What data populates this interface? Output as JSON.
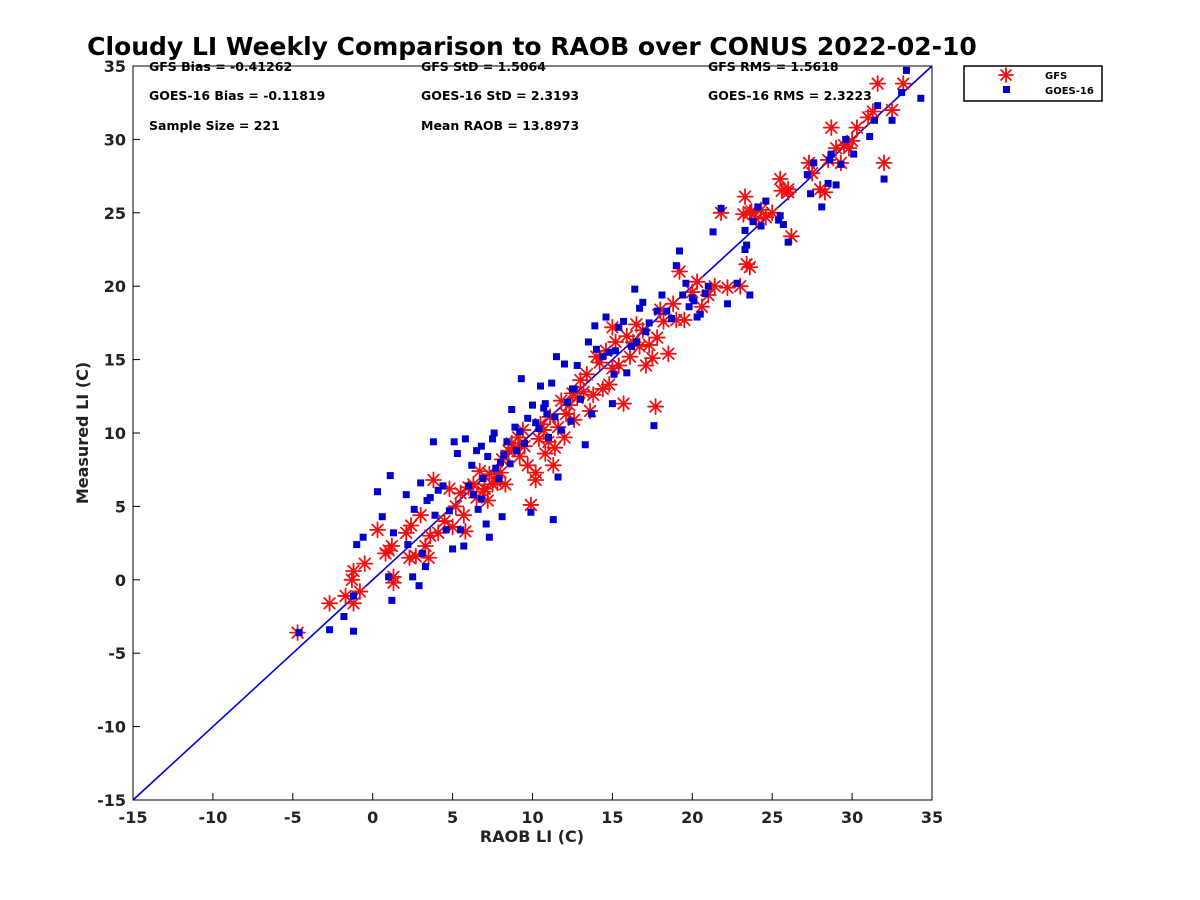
{
  "chart_data": {
    "type": "scatter",
    "title": "Cloudy LI Weekly Comparison to RAOB over CONUS 2022-02-10",
    "xlabel": "RAOB LI (C)",
    "ylabel": "Measured LI (C)",
    "xlim": [
      -15,
      35
    ],
    "ylim": [
      -15,
      35
    ],
    "xticks": [
      -15,
      -10,
      -5,
      0,
      5,
      10,
      15,
      20,
      25,
      30,
      35
    ],
    "yticks": [
      -15,
      -10,
      -5,
      0,
      5,
      10,
      15,
      20,
      25,
      30,
      35
    ],
    "grid": false,
    "legend_position": "top-right outside",
    "reference_line": {
      "x": [
        -15,
        35
      ],
      "y": [
        -15,
        35
      ],
      "color": "#0000dd"
    },
    "stats": [
      [
        "GFS Bias = -0.41262",
        "GFS StD = 1.5064",
        "GFS RMS = 1.5618"
      ],
      [
        "GOES-16 Bias = -0.11819",
        "GOES-16 StD = 2.3193",
        "GOES-16 RMS = 2.3223"
      ],
      [
        "Sample Size = 221",
        "Mean RAOB = 13.8973"
      ]
    ],
    "series": [
      {
        "name": "GFS",
        "marker": "asterisk",
        "color": "#ee1111",
        "points": [
          [
            -4.7,
            -3.6
          ],
          [
            -2.7,
            -1.6
          ],
          [
            -1.7,
            -1.1
          ],
          [
            -1.2,
            -1.6
          ],
          [
            -1.3,
            0
          ],
          [
            -1.2,
            0.6
          ],
          [
            -0.8,
            -0.8
          ],
          [
            -0.5,
            1.1
          ],
          [
            0.3,
            3.4
          ],
          [
            0.8,
            1.8
          ],
          [
            1.2,
            2.3
          ],
          [
            1.3,
            0.2
          ],
          [
            1.0,
            2.0
          ],
          [
            1.3,
            -0.2
          ],
          [
            2.1,
            3.2
          ],
          [
            2.3,
            1.5
          ],
          [
            2.4,
            3.7
          ],
          [
            2.7,
            1.6
          ],
          [
            3.0,
            4.4
          ],
          [
            3.3,
            2.3
          ],
          [
            3.5,
            1.5
          ],
          [
            3.6,
            3.0
          ],
          [
            3.8,
            6.8
          ],
          [
            4.1,
            3.2
          ],
          [
            4.5,
            4.0
          ],
          [
            4.8,
            6.2
          ],
          [
            5.0,
            3.6
          ],
          [
            5.2,
            5.0
          ],
          [
            5.5,
            5.9
          ],
          [
            5.7,
            4.4
          ],
          [
            5.8,
            3.3
          ],
          [
            6.0,
            6.3
          ],
          [
            6.3,
            6.5
          ],
          [
            6.5,
            5.6
          ],
          [
            6.7,
            7.4
          ],
          [
            6.9,
            6.0
          ],
          [
            7.0,
            6.2
          ],
          [
            7.2,
            5.4
          ],
          [
            7.3,
            7.2
          ],
          [
            7.5,
            6.5
          ],
          [
            7.6,
            6.9
          ],
          [
            7.8,
            6.6
          ],
          [
            8.0,
            7.3
          ],
          [
            8.1,
            8.2
          ],
          [
            8.3,
            6.5
          ],
          [
            8.5,
            8.8
          ],
          [
            8.7,
            9.3
          ],
          [
            8.9,
            9.0
          ],
          [
            9.1,
            9.7
          ],
          [
            9.2,
            8.4
          ],
          [
            9.4,
            10.2
          ],
          [
            9.5,
            9.1
          ],
          [
            9.7,
            7.8
          ],
          [
            9.9,
            5.1
          ],
          [
            10.2,
            7.3
          ],
          [
            10.2,
            6.8
          ],
          [
            10.4,
            9.6
          ],
          [
            10.5,
            10.6
          ],
          [
            10.7,
            10.2
          ],
          [
            10.8,
            8.6
          ],
          [
            11.0,
            9.4
          ],
          [
            11.1,
            11.1
          ],
          [
            11.3,
            7.8
          ],
          [
            11.4,
            9.0
          ],
          [
            11.6,
            10.4
          ],
          [
            11.8,
            12.2
          ],
          [
            12.0,
            9.7
          ],
          [
            12.1,
            11.3
          ],
          [
            12.3,
            11.9
          ],
          [
            12.5,
            12.7
          ],
          [
            12.6,
            10.9
          ],
          [
            12.8,
            12.4
          ],
          [
            13.0,
            13.6
          ],
          [
            13.2,
            12.8
          ],
          [
            13.4,
            14.0
          ],
          [
            13.6,
            11.5
          ],
          [
            13.8,
            12.6
          ],
          [
            14.0,
            15.2
          ],
          [
            14.2,
            14.8
          ],
          [
            14.4,
            13.0
          ],
          [
            14.6,
            15.6
          ],
          [
            14.8,
            13.3
          ],
          [
            15.0,
            14.4
          ],
          [
            15.2,
            16.2
          ],
          [
            15.0,
            17.2
          ],
          [
            15.4,
            14.6
          ],
          [
            15.7,
            12.0
          ],
          [
            15.9,
            16.6
          ],
          [
            16.1,
            15.2
          ],
          [
            16.3,
            16.2
          ],
          [
            16.5,
            17.4
          ],
          [
            16.7,
            15.9
          ],
          [
            16.9,
            17.0
          ],
          [
            17.1,
            14.6
          ],
          [
            17.3,
            16.0
          ],
          [
            17.5,
            15.1
          ],
          [
            17.7,
            11.8
          ],
          [
            17.8,
            16.5
          ],
          [
            18.0,
            18.4
          ],
          [
            18.2,
            17.6
          ],
          [
            18.5,
            15.4
          ],
          [
            19.0,
            17.7
          ],
          [
            19.2,
            21.0
          ],
          [
            19.5,
            17.7
          ],
          [
            20.0,
            19.6
          ],
          [
            20.3,
            20.3
          ],
          [
            20.6,
            18.6
          ],
          [
            21.0,
            19.4
          ],
          [
            21.4,
            20.0
          ],
          [
            21.8,
            25.0
          ],
          [
            22.2,
            19.9
          ],
          [
            23.0,
            20.0
          ],
          [
            23.3,
            26.1
          ],
          [
            23.2,
            24.9
          ],
          [
            23.6,
            21.3
          ],
          [
            23.4,
            21.5
          ],
          [
            23.7,
            25.1
          ],
          [
            24.0,
            24.6
          ],
          [
            24.3,
            25.2
          ],
          [
            24.6,
            24.7
          ],
          [
            25.0,
            25.0
          ],
          [
            25.5,
            27.3
          ],
          [
            25.6,
            26.5
          ],
          [
            26.0,
            26.4
          ],
          [
            26.2,
            23.4
          ],
          [
            27.3,
            28.4
          ],
          [
            27.5,
            27.7
          ],
          [
            28.0,
            26.6
          ],
          [
            28.3,
            26.4
          ],
          [
            28.5,
            28.6
          ],
          [
            28.7,
            30.8
          ],
          [
            29.0,
            29.4
          ],
          [
            29.3,
            28.4
          ],
          [
            29.5,
            29.6
          ],
          [
            29.8,
            29.4
          ],
          [
            30.3,
            30.8
          ],
          [
            31.0,
            31.5
          ],
          [
            31.3,
            31.9
          ],
          [
            31.6,
            33.8
          ],
          [
            32.0,
            28.4
          ],
          [
            32.5,
            32.0
          ],
          [
            33.2,
            33.8
          ],
          [
            30.0,
            29.9
          ],
          [
            18.8,
            18.8
          ],
          [
            26.0,
            26.6
          ],
          [
            23.6,
            25.0
          ]
        ]
      },
      {
        "name": "GOES-16",
        "marker": "square",
        "color": "#0000cc",
        "points": [
          [
            -4.6,
            -3.6
          ],
          [
            -2.7,
            -3.4
          ],
          [
            -1.8,
            -2.5
          ],
          [
            -1.2,
            -3.5
          ],
          [
            -1.2,
            -1.1
          ],
          [
            -1.0,
            2.4
          ],
          [
            -0.6,
            2.9
          ],
          [
            0.3,
            6.0
          ],
          [
            0.6,
            4.3
          ],
          [
            1.0,
            0.2
          ],
          [
            1.1,
            7.1
          ],
          [
            1.2,
            -1.4
          ],
          [
            1.3,
            3.2
          ],
          [
            2.1,
            5.8
          ],
          [
            2.2,
            2.4
          ],
          [
            2.5,
            0.2
          ],
          [
            2.6,
            4.8
          ],
          [
            2.9,
            -0.4
          ],
          [
            3.0,
            6.6
          ],
          [
            3.1,
            1.8
          ],
          [
            3.3,
            0.9
          ],
          [
            3.4,
            5.4
          ],
          [
            3.6,
            5.6
          ],
          [
            3.8,
            9.4
          ],
          [
            3.9,
            4.4
          ],
          [
            4.1,
            6.1
          ],
          [
            4.4,
            6.4
          ],
          [
            4.6,
            3.4
          ],
          [
            4.8,
            4.7
          ],
          [
            5.0,
            2.1
          ],
          [
            5.1,
            9.4
          ],
          [
            5.3,
            8.6
          ],
          [
            5.5,
            3.4
          ],
          [
            5.7,
            2.3
          ],
          [
            5.8,
            9.6
          ],
          [
            6.0,
            6.4
          ],
          [
            6.2,
            7.8
          ],
          [
            6.3,
            5.8
          ],
          [
            6.5,
            8.8
          ],
          [
            6.6,
            4.8
          ],
          [
            6.8,
            9.1
          ],
          [
            6.9,
            6.9
          ],
          [
            7.1,
            3.8
          ],
          [
            7.2,
            8.4
          ],
          [
            7.3,
            2.9
          ],
          [
            7.5,
            9.6
          ],
          [
            7.6,
            10.0
          ],
          [
            7.7,
            7.6
          ],
          [
            7.9,
            6.9
          ],
          [
            8.1,
            4.3
          ],
          [
            8.2,
            8.5
          ],
          [
            8.4,
            9.4
          ],
          [
            8.6,
            7.9
          ],
          [
            8.7,
            11.6
          ],
          [
            8.9,
            10.4
          ],
          [
            9.0,
            8.8
          ],
          [
            9.2,
            10.1
          ],
          [
            9.3,
            13.7
          ],
          [
            9.5,
            9.3
          ],
          [
            9.7,
            11.0
          ],
          [
            9.9,
            4.6
          ],
          [
            10.0,
            11.9
          ],
          [
            10.2,
            10.7
          ],
          [
            10.4,
            10.3
          ],
          [
            10.5,
            13.2
          ],
          [
            10.7,
            11.7
          ],
          [
            10.9,
            11.3
          ],
          [
            11.0,
            9.7
          ],
          [
            11.2,
            13.4
          ],
          [
            11.3,
            4.1
          ],
          [
            11.4,
            11.1
          ],
          [
            11.5,
            15.2
          ],
          [
            11.6,
            7.0
          ],
          [
            11.8,
            10.2
          ],
          [
            12.0,
            14.7
          ],
          [
            12.2,
            12.1
          ],
          [
            12.4,
            10.8
          ],
          [
            12.6,
            13.0
          ],
          [
            12.8,
            14.6
          ],
          [
            13.0,
            12.3
          ],
          [
            13.3,
            9.2
          ],
          [
            13.5,
            16.2
          ],
          [
            13.7,
            11.3
          ],
          [
            13.9,
            17.3
          ],
          [
            14.0,
            15.7
          ],
          [
            14.4,
            15.2
          ],
          [
            14.6,
            17.9
          ],
          [
            14.8,
            15.5
          ],
          [
            15.0,
            12.0
          ],
          [
            15.2,
            15.6
          ],
          [
            15.4,
            17.2
          ],
          [
            15.7,
            17.6
          ],
          [
            15.9,
            14.1
          ],
          [
            16.2,
            15.9
          ],
          [
            16.4,
            19.8
          ],
          [
            16.5,
            16.2
          ],
          [
            16.7,
            18.5
          ],
          [
            16.9,
            18.9
          ],
          [
            17.1,
            16.9
          ],
          [
            17.3,
            17.5
          ],
          [
            17.6,
            10.5
          ],
          [
            17.8,
            18.3
          ],
          [
            18.1,
            19.4
          ],
          [
            18.4,
            18.3
          ],
          [
            18.7,
            17.8
          ],
          [
            19.0,
            21.4
          ],
          [
            19.2,
            22.4
          ],
          [
            19.4,
            19.4
          ],
          [
            19.6,
            20.2
          ],
          [
            19.8,
            18.6
          ],
          [
            20.1,
            19.0
          ],
          [
            20.3,
            17.9
          ],
          [
            20.5,
            18.1
          ],
          [
            20.8,
            19.5
          ],
          [
            21.0,
            20.0
          ],
          [
            21.3,
            23.7
          ],
          [
            21.8,
            25.3
          ],
          [
            22.2,
            18.8
          ],
          [
            22.8,
            20.2
          ],
          [
            23.3,
            22.5
          ],
          [
            23.3,
            23.8
          ],
          [
            23.4,
            22.8
          ],
          [
            23.6,
            19.4
          ],
          [
            23.8,
            24.4
          ],
          [
            24.1,
            25.4
          ],
          [
            24.3,
            24.1
          ],
          [
            24.6,
            25.8
          ],
          [
            25.5,
            24.8
          ],
          [
            25.7,
            24.2
          ],
          [
            26.0,
            23.0
          ],
          [
            27.2,
            27.6
          ],
          [
            27.4,
            26.3
          ],
          [
            27.6,
            28.4
          ],
          [
            28.1,
            25.4
          ],
          [
            28.5,
            27.0
          ],
          [
            28.7,
            29.0
          ],
          [
            29.0,
            26.9
          ],
          [
            29.3,
            28.3
          ],
          [
            29.6,
            30.0
          ],
          [
            30.1,
            29.0
          ],
          [
            31.1,
            30.2
          ],
          [
            31.4,
            31.3
          ],
          [
            31.6,
            32.3
          ],
          [
            32.0,
            27.3
          ],
          [
            32.5,
            31.3
          ],
          [
            33.1,
            33.2
          ],
          [
            33.4,
            34.7
          ],
          [
            34.3,
            32.8
          ],
          [
            12.5,
            13.0
          ],
          [
            8.0,
            8.0
          ],
          [
            6.8,
            5.5
          ],
          [
            10.8,
            12.0
          ],
          [
            15.1,
            14.0
          ],
          [
            20.0,
            19.2
          ],
          [
            25.4,
            24.5
          ],
          [
            28.6,
            28.6
          ]
        ]
      }
    ]
  }
}
